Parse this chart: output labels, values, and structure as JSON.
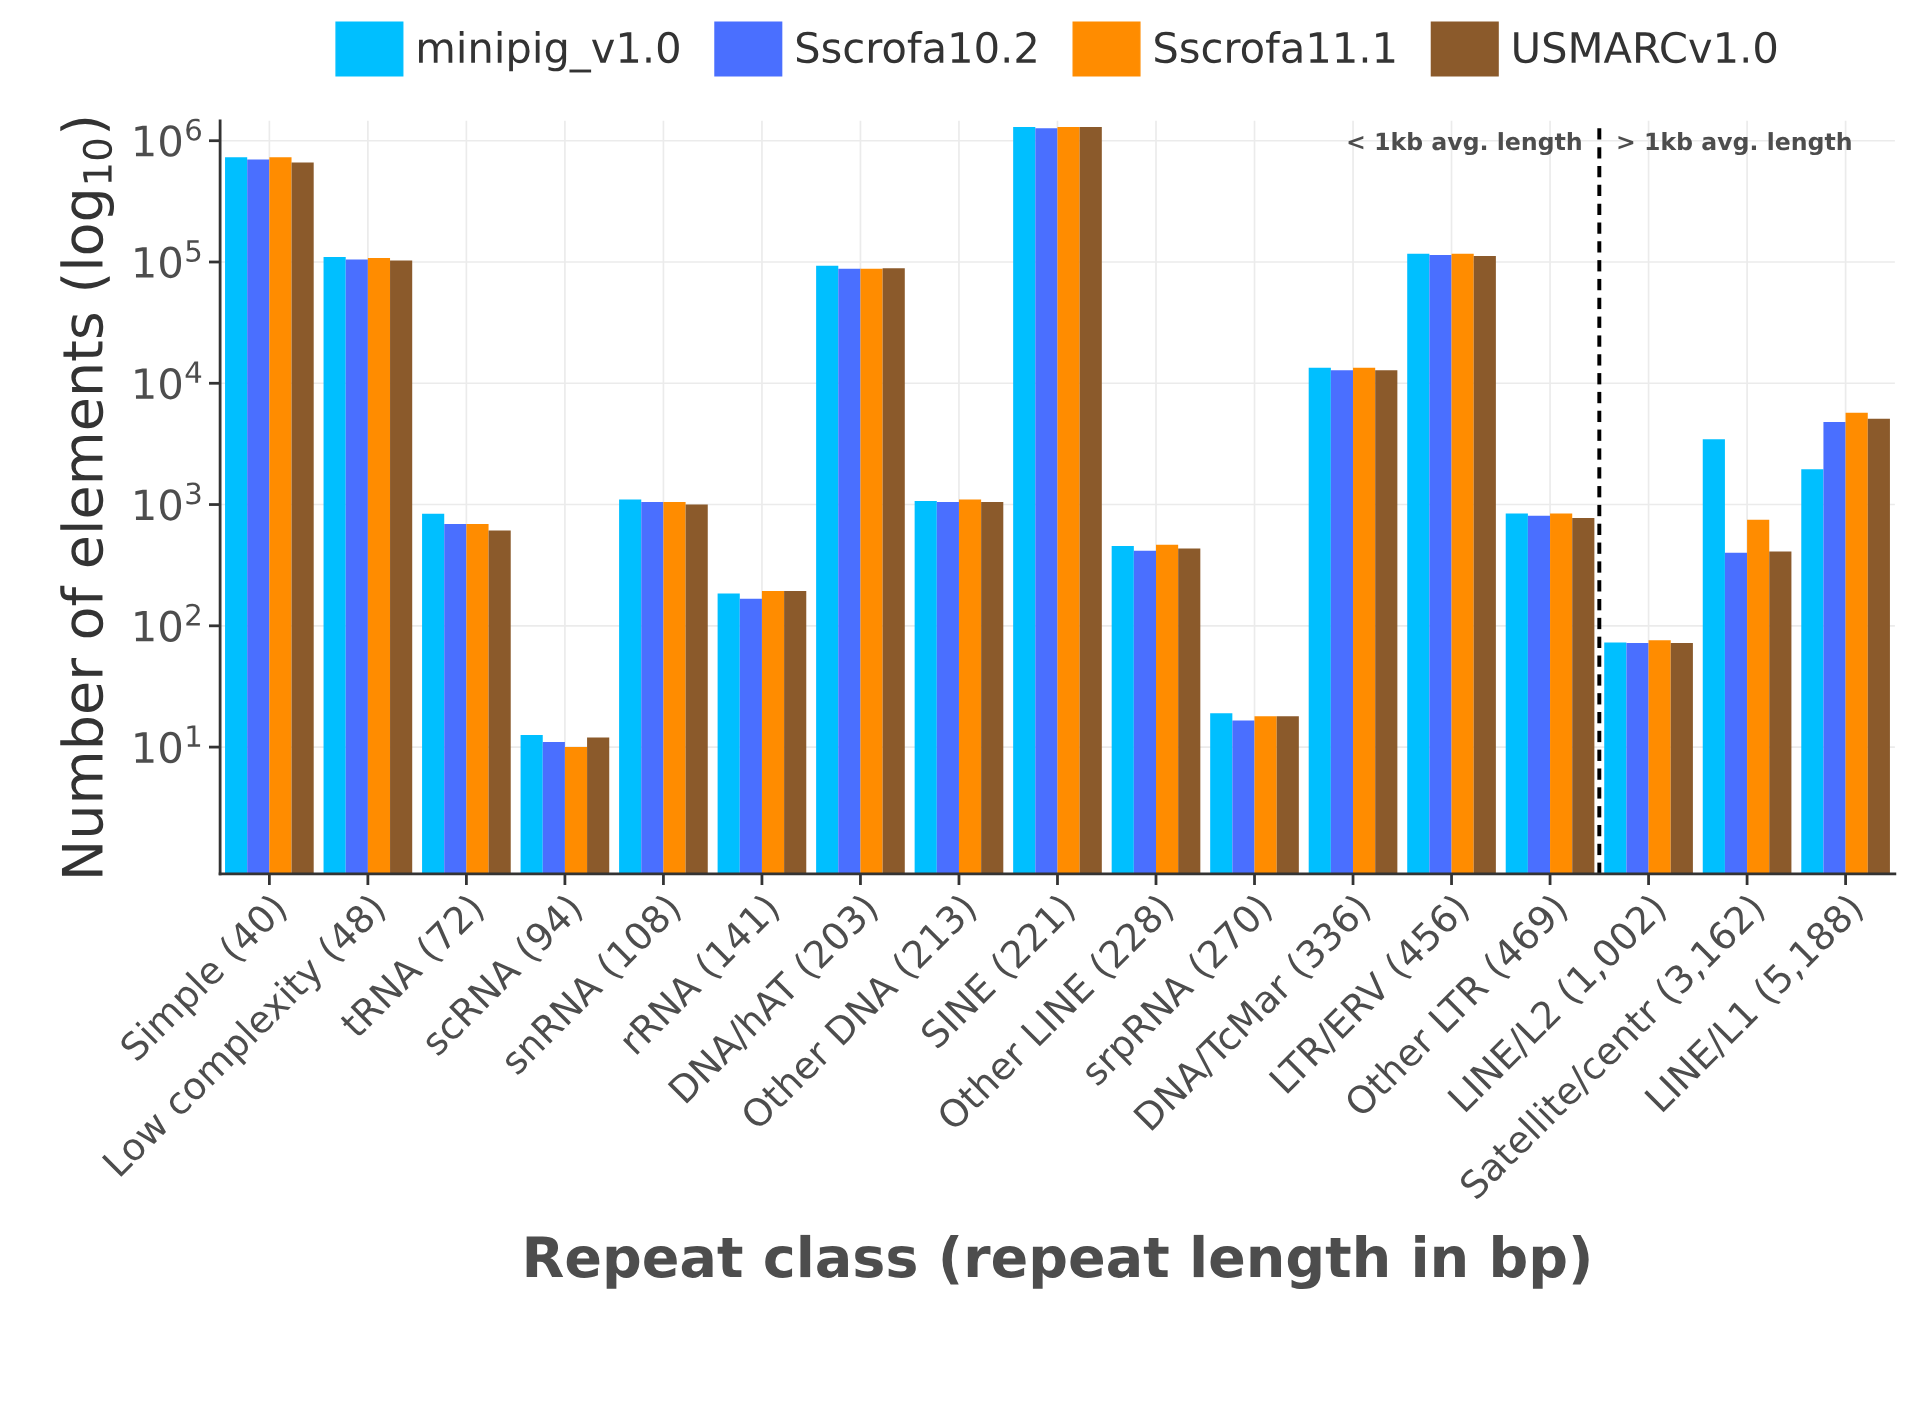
{
  "chart_data": {
    "type": "bar",
    "xlabel": "Repeat class (repeat length in bp)",
    "ylabel": "Number of elements (log$_{10}$)",
    "categories": [
      "Simple (40)",
      "Low complexity (48)",
      "tRNA (72)",
      "scRNA (94)",
      "snRNA (108)",
      "rRNA (141)",
      "DNA/hAT (203)",
      "Other DNA (213)",
      "SINE (221)",
      "Other LINE (228)",
      "srpRNA (270)",
      "DNA/TcMar (336)",
      "LTR/ERV (456)",
      "Other LTR (469)",
      "LINE/L2 (1,002)",
      "Satellite/centr (3,162)",
      "LINE/L1 (5,188)"
    ],
    "series": [
      {
        "name": "minipig_v1.0",
        "color": "#00bfff",
        "values": [
          730000,
          110000,
          840,
          12.6,
          1100,
          185,
          93000,
          1070,
          1300000,
          455,
          19,
          13400,
          117000,
          845,
          73,
          3450,
          1950
        ]
      },
      {
        "name": "Sscrofa10.2",
        "color": "#4a6fff",
        "values": [
          700000,
          105000,
          690,
          11,
          1050,
          167,
          88000,
          1050,
          1270000,
          415,
          16.6,
          12800,
          114000,
          810,
          72,
          400,
          4800
        ]
      },
      {
        "name": "Sscrofa11.1",
        "color": "#ff8c00",
        "values": [
          730000,
          108000,
          690,
          10,
          1050,
          194,
          88000,
          1100,
          1300000,
          465,
          18,
          13400,
          117000,
          845,
          76,
          750,
          5700
        ]
      },
      {
        "name": "USMARCv1.0",
        "color": "#8b5a2b",
        "values": [
          660000,
          103000,
          610,
          12,
          1000,
          194,
          89000,
          1050,
          1300000,
          435,
          18,
          12800,
          112000,
          775,
          72,
          410,
          5100
        ]
      }
    ],
    "log": true,
    "ylim": [
      0.9,
      1460000
    ],
    "yticks": [
      {
        "value": 10,
        "label": "10$^{1}$"
      },
      {
        "value": 100,
        "label": "10$^{2}$"
      },
      {
        "value": 1000,
        "label": "10$^{3}$"
      },
      {
        "value": 10000,
        "label": "10$^{4}$"
      },
      {
        "value": 100000,
        "label": "10$^{5}$"
      },
      {
        "value": 1000000,
        "label": "10$^{6}$"
      }
    ],
    "annotations": [
      "< 1kb avg. length",
      "> 1kb avg. length"
    ],
    "grid": true,
    "legend": "top"
  }
}
